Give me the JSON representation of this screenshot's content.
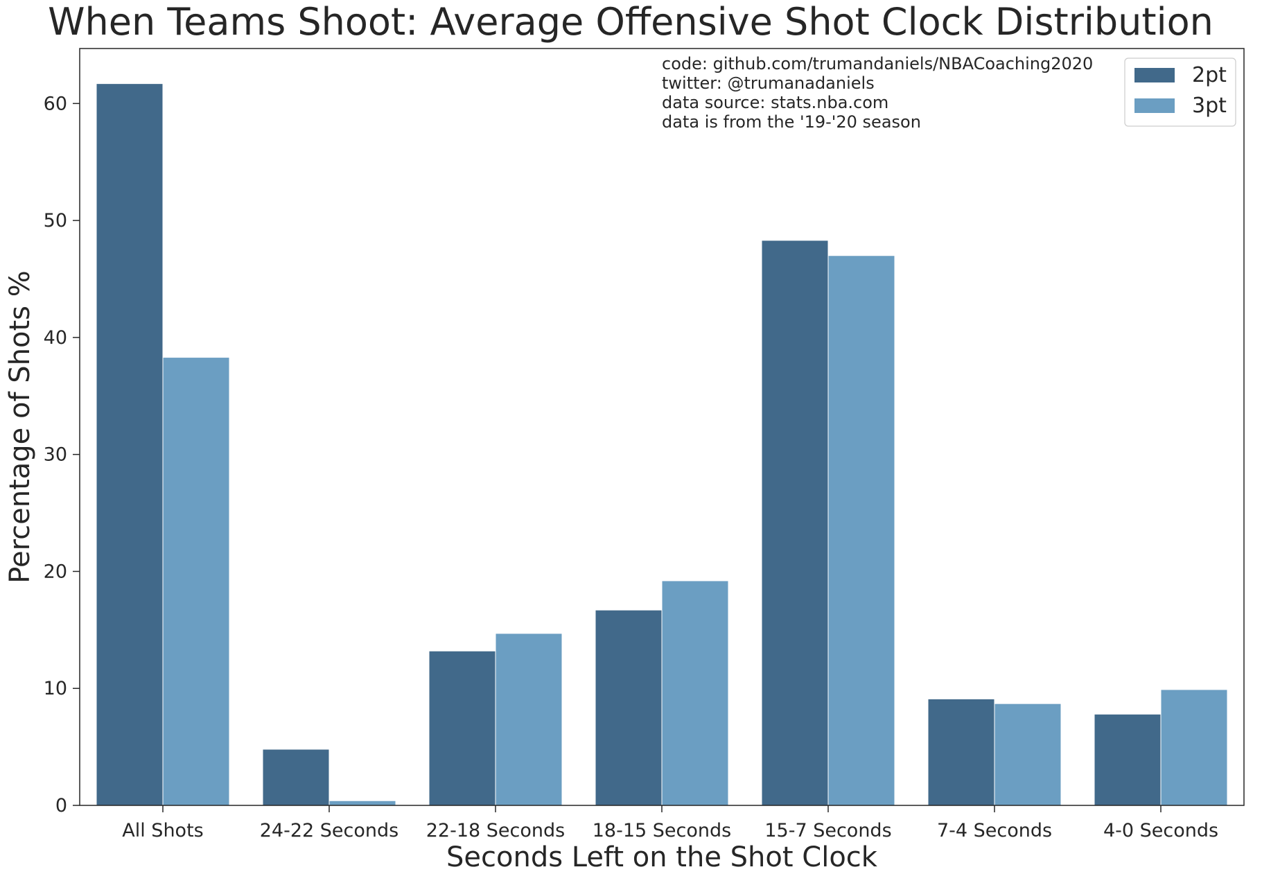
{
  "chart_data": {
    "type": "bar",
    "title": "When Teams Shoot: Average Offensive Shot Clock Distribution",
    "xlabel": "Seconds Left on the Shot Clock",
    "ylabel": "Percentage of Shots %",
    "categories": [
      "All Shots",
      "24-22 Seconds",
      "22-18 Seconds",
      "18-15 Seconds",
      "15-7 Seconds",
      "7-4 Seconds",
      "4-0 Seconds"
    ],
    "series": [
      {
        "name": "2pt",
        "color": "#41698a",
        "values": [
          61.7,
          4.8,
          13.2,
          16.7,
          48.3,
          9.1,
          7.8
        ]
      },
      {
        "name": "3pt",
        "color": "#6b9ec2",
        "values": [
          38.3,
          0.4,
          14.7,
          19.2,
          47.0,
          8.7,
          9.9
        ]
      }
    ],
    "ylim": [
      0,
      64.7
    ],
    "yticks": [
      0,
      10,
      20,
      30,
      40,
      50,
      60
    ],
    "grid": false,
    "legend": "upper right",
    "annotations": [
      "code: github.com/trumandaniels/NBACoaching2020",
      "twitter: @trumanadaniels",
      "data source: stats.nba.com",
      "data is from the '19-'20 season"
    ]
  }
}
